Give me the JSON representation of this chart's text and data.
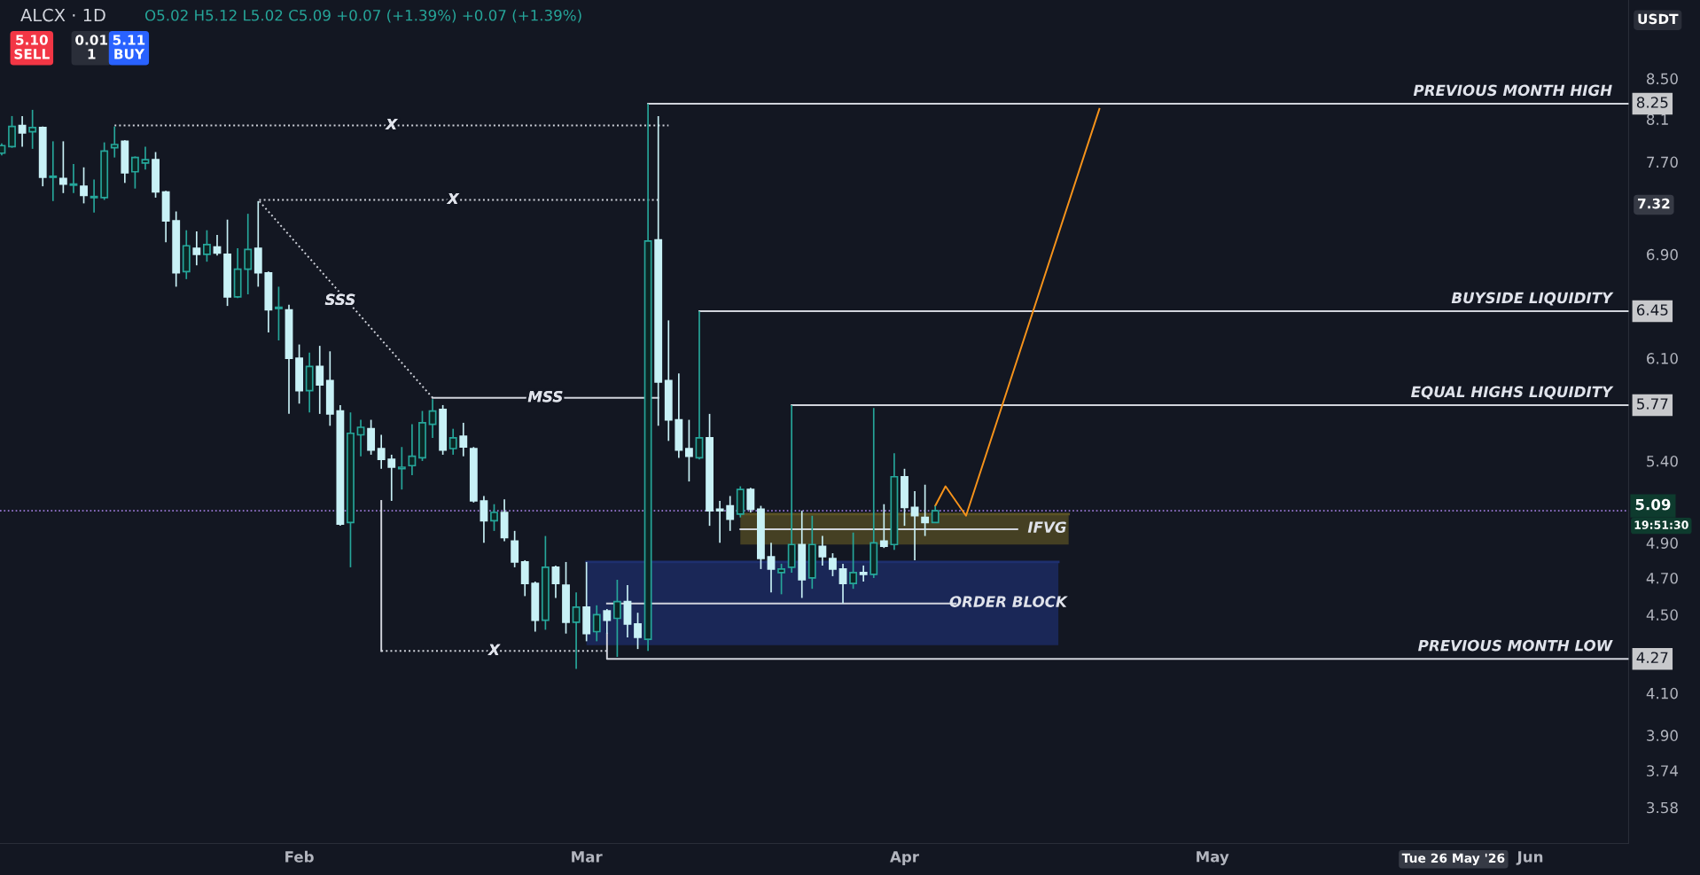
{
  "chart_data": {
    "type": "candlestick",
    "title": "ALCX · 1D",
    "subtitle": "O5.02 H5.12 L5.02 C5.09 +0.07 (+1.39%) +0.07 (+1.39%)",
    "x": [
      "2026-01-03",
      "2026-01-04",
      "2026-01-05",
      "2026-01-06",
      "2026-01-07",
      "2026-01-08",
      "2026-01-09",
      "2026-01-10",
      "2026-01-11",
      "2026-01-12",
      "2026-01-13",
      "2026-01-14",
      "2026-01-15",
      "2026-01-16",
      "2026-01-17",
      "2026-01-18",
      "2026-01-19",
      "2026-01-20",
      "2026-01-21",
      "2026-01-22",
      "2026-01-23",
      "2026-01-24",
      "2026-01-25",
      "2026-01-26",
      "2026-01-27",
      "2026-01-28",
      "2026-01-29",
      "2026-01-30",
      "2026-01-31",
      "2026-02-01",
      "2026-02-02",
      "2026-02-03",
      "2026-02-04",
      "2026-02-05",
      "2026-02-06",
      "2026-02-07",
      "2026-02-08",
      "2026-02-09",
      "2026-02-10",
      "2026-02-11",
      "2026-02-12",
      "2026-02-13",
      "2026-02-14",
      "2026-02-15",
      "2026-02-16",
      "2026-02-17",
      "2026-02-18",
      "2026-02-19",
      "2026-02-20",
      "2026-02-21",
      "2026-02-22",
      "2026-02-23",
      "2026-02-24",
      "2026-02-25",
      "2026-02-26",
      "2026-02-27",
      "2026-02-28",
      "2026-03-01",
      "2026-03-02",
      "2026-03-03",
      "2026-03-04",
      "2026-03-05",
      "2026-03-06",
      "2026-03-07",
      "2026-03-08",
      "2026-03-09",
      "2026-03-10",
      "2026-03-11",
      "2026-03-12",
      "2026-03-13",
      "2026-03-14",
      "2026-03-15",
      "2026-03-16",
      "2026-03-17",
      "2026-03-18",
      "2026-03-19",
      "2026-03-20",
      "2026-03-21",
      "2026-03-22",
      "2026-03-23",
      "2026-03-24",
      "2026-03-25",
      "2026-03-26",
      "2026-03-27",
      "2026-03-28",
      "2026-03-29",
      "2026-03-30",
      "2026-03-31",
      "2026-04-01",
      "2026-04-02",
      "2026-04-03",
      "2026-04-04"
    ],
    "ohlc": [
      [
        7.78,
        7.87,
        7.76,
        7.85
      ],
      [
        7.84,
        8.13,
        7.83,
        8.03
      ],
      [
        8.04,
        8.13,
        7.84,
        7.97
      ],
      [
        7.98,
        8.19,
        7.82,
        8.02
      ],
      [
        8.02,
        8.03,
        7.48,
        7.56
      ],
      [
        7.56,
        7.89,
        7.35,
        7.57
      ],
      [
        7.55,
        7.89,
        7.42,
        7.5
      ],
      [
        7.49,
        7.68,
        7.42,
        7.5
      ],
      [
        7.48,
        7.65,
        7.33,
        7.4
      ],
      [
        7.38,
        7.54,
        7.25,
        7.39
      ],
      [
        7.38,
        7.88,
        7.36,
        7.8
      ],
      [
        7.83,
        8.03,
        7.74,
        7.86
      ],
      [
        7.89,
        7.9,
        7.51,
        7.6
      ],
      [
        7.61,
        7.75,
        7.46,
        7.74
      ],
      [
        7.69,
        7.84,
        7.63,
        7.72
      ],
      [
        7.72,
        7.79,
        7.38,
        7.43
      ],
      [
        7.43,
        7.44,
        7.0,
        7.18
      ],
      [
        7.18,
        7.26,
        6.64,
        6.75
      ],
      [
        6.76,
        7.1,
        6.7,
        6.97
      ],
      [
        6.95,
        7.09,
        6.81,
        6.9
      ],
      [
        6.9,
        7.1,
        6.84,
        6.98
      ],
      [
        6.96,
        7.06,
        6.89,
        6.91
      ],
      [
        6.9,
        7.19,
        6.49,
        6.56
      ],
      [
        6.56,
        6.95,
        6.55,
        6.78
      ],
      [
        6.78,
        7.24,
        6.58,
        6.94
      ],
      [
        6.95,
        7.35,
        6.64,
        6.75
      ],
      [
        6.75,
        6.76,
        6.29,
        6.46
      ],
      [
        6.47,
        6.64,
        6.23,
        6.48
      ],
      [
        6.46,
        6.5,
        5.71,
        6.1
      ],
      [
        6.1,
        6.2,
        5.78,
        5.87
      ],
      [
        5.87,
        6.14,
        5.72,
        6.04
      ],
      [
        6.04,
        6.19,
        5.71,
        5.91
      ],
      [
        5.94,
        6.15,
        5.63,
        5.71
      ],
      [
        5.73,
        5.77,
        5.0,
        5.01
      ],
      [
        5.02,
        5.72,
        4.76,
        5.58
      ],
      [
        5.57,
        5.67,
        5.43,
        5.62
      ],
      [
        5.61,
        5.67,
        5.44,
        5.47
      ],
      [
        5.48,
        5.57,
        5.35,
        5.41
      ],
      [
        5.41,
        5.44,
        5.15,
        5.36
      ],
      [
        5.35,
        5.49,
        5.22,
        5.36
      ],
      [
        5.37,
        5.64,
        5.31,
        5.43
      ],
      [
        5.42,
        5.73,
        5.4,
        5.65
      ],
      [
        5.64,
        5.81,
        5.55,
        5.73
      ],
      [
        5.74,
        5.77,
        5.44,
        5.47
      ],
      [
        5.48,
        5.61,
        5.44,
        5.55
      ],
      [
        5.56,
        5.65,
        5.43,
        5.49
      ],
      [
        5.48,
        5.49,
        5.14,
        5.15
      ],
      [
        5.15,
        5.18,
        4.9,
        5.03
      ],
      [
        5.03,
        5.13,
        4.97,
        5.08
      ],
      [
        5.08,
        5.16,
        4.91,
        4.93
      ],
      [
        4.91,
        4.97,
        4.76,
        4.79
      ],
      [
        4.79,
        4.8,
        4.6,
        4.67
      ],
      [
        4.67,
        4.68,
        4.41,
        4.47
      ],
      [
        4.47,
        4.94,
        4.42,
        4.76
      ],
      [
        4.76,
        4.77,
        4.59,
        4.67
      ],
      [
        4.66,
        4.79,
        4.4,
        4.46
      ],
      [
        4.46,
        4.62,
        4.22,
        4.54
      ],
      [
        4.54,
        4.79,
        4.36,
        4.4
      ],
      [
        4.41,
        4.55,
        4.36,
        4.5
      ],
      [
        4.52,
        4.53,
        4.4,
        4.47
      ],
      [
        4.48,
        4.69,
        4.28,
        4.57
      ],
      [
        4.57,
        4.66,
        4.38,
        4.45
      ],
      [
        4.45,
        4.51,
        4.32,
        4.38
      ],
      [
        4.37,
        8.25,
        4.31,
        7.01
      ],
      [
        7.02,
        8.13,
        5.63,
        5.93
      ],
      [
        5.94,
        6.38,
        5.53,
        5.67
      ],
      [
        5.67,
        5.99,
        5.42,
        5.47
      ],
      [
        5.48,
        5.67,
        5.27,
        5.43
      ],
      [
        5.42,
        6.45,
        5.41,
        5.55
      ],
      [
        5.55,
        5.71,
        5.0,
        5.09
      ],
      [
        5.1,
        5.15,
        4.9,
        5.09
      ],
      [
        5.12,
        5.18,
        4.97,
        5.04
      ],
      [
        5.07,
        5.24,
        5.05,
        5.22
      ],
      [
        5.22,
        5.23,
        5.08,
        5.1
      ],
      [
        5.1,
        5.12,
        4.75,
        4.81
      ],
      [
        4.82,
        4.9,
        4.62,
        4.75
      ],
      [
        4.73,
        4.78,
        4.61,
        4.75
      ],
      [
        4.76,
        5.77,
        4.73,
        4.89
      ],
      [
        4.89,
        5.09,
        4.59,
        4.69
      ],
      [
        4.7,
        5.06,
        4.64,
        4.89
      ],
      [
        4.88,
        4.94,
        4.77,
        4.82
      ],
      [
        4.81,
        4.84,
        4.71,
        4.75
      ],
      [
        4.75,
        4.78,
        4.56,
        4.67
      ],
      [
        4.67,
        4.96,
        4.64,
        4.73
      ],
      [
        4.73,
        4.77,
        4.68,
        4.72
      ],
      [
        4.72,
        5.75,
        4.7,
        4.9
      ],
      [
        4.91,
        5.13,
        4.87,
        4.88
      ],
      [
        4.89,
        5.45,
        4.86,
        5.3
      ],
      [
        5.3,
        5.35,
        5.0,
        5.11
      ],
      [
        5.11,
        5.21,
        4.8,
        5.06
      ],
      [
        5.05,
        5.25,
        4.94,
        5.02
      ],
      [
        5.02,
        5.12,
        5.02,
        5.09
      ]
    ],
    "colors": [
      "#26a69a",
      "#26a69a",
      "#c8f1f6",
      "#26a69a",
      "#c8f1f6",
      "#26a69a",
      "#c8f1f6",
      "#26a69a",
      "#c8f1f6",
      "#26a69a",
      "#26a69a",
      "#26a69a",
      "#c8f1f6",
      "#26a69a",
      "#26a69a",
      "#c8f1f6",
      "#c8f1f6",
      "#c8f1f6",
      "#26a69a",
      "#c8f1f6",
      "#26a69a",
      "#c8f1f6",
      "#c8f1f6",
      "#26a69a",
      "#26a69a",
      "#c8f1f6",
      "#c8f1f6",
      "#26a69a",
      "#c8f1f6",
      "#c8f1f6",
      "#26a69a",
      "#c8f1f6",
      "#c8f1f6",
      "#c8f1f6",
      "#26a69a",
      "#26a69a",
      "#c8f1f6",
      "#c8f1f6",
      "#c8f1f6",
      "#26a69a",
      "#26a69a",
      "#26a69a",
      "#26a69a",
      "#c8f1f6",
      "#26a69a",
      "#c8f1f6",
      "#c8f1f6",
      "#c8f1f6",
      "#26a69a",
      "#c8f1f6",
      "#c8f1f6",
      "#c8f1f6",
      "#c8f1f6",
      "#26a69a",
      "#c8f1f6",
      "#c8f1f6",
      "#26a69a",
      "#c8f1f6",
      "#26a69a",
      "#c8f1f6",
      "#26a69a",
      "#c8f1f6",
      "#c8f1f6",
      "#26a69a",
      "#c8f1f6",
      "#c8f1f6",
      "#c8f1f6",
      "#c8f1f6",
      "#26a69a",
      "#c8f1f6",
      "#c8f1f6",
      "#c8f1f6",
      "#26a69a",
      "#c8f1f6",
      "#c8f1f6",
      "#c8f1f6",
      "#26a69a",
      "#26a69a",
      "#c8f1f6",
      "#26a69a",
      "#c8f1f6",
      "#c8f1f6",
      "#c8f1f6",
      "#26a69a",
      "#c8f1f6",
      "#26a69a",
      "#c8f1f6",
      "#26a69a",
      "#c8f1f6",
      "#c8f1f6",
      "#c8f1f6",
      "#26a69a"
    ],
    "series": [
      {
        "type": "line",
        "x": [
          "2026-01-14",
          "2026-03-09"
        ],
        "values": [
          8.04,
          8.04
        ],
        "color": "#d1d4dc",
        "line_style": "dotted"
      },
      {
        "type": "line",
        "x": [
          "2026-03-08",
          "2026-01-28",
          "2026-02-14"
        ],
        "values": [
          7.36,
          7.36,
          5.82
        ],
        "color": "#d1d4dc",
        "line_style": "dotted"
      },
      {
        "type": "line",
        "x": [
          "2026-02-14",
          "2026-03-08"
        ],
        "values": [
          5.82,
          5.82
        ],
        "color": "#d1d4dc",
        "line_style": "solid"
      },
      {
        "type": "line",
        "x": [
          "2026-02-09",
          "2026-02-09"
        ],
        "values": [
          5.15,
          4.31
        ],
        "color": "#d1d4dc",
        "line_style": "solid"
      },
      {
        "type": "line",
        "x": [
          "2026-02-09",
          "2026-03-03"
        ],
        "values": [
          4.31,
          4.31
        ],
        "color": "#d1d4dc",
        "line_style": "dotted"
      },
      {
        "type": "line",
        "x": [
          "2026-03-07",
          "2026-06-10T14:00"
        ],
        "values": [
          8.25,
          8.25
        ],
        "value_labels": [
          null,
          "8.25"
        ],
        "color": "#d1d4dc",
        "line_style": "solid"
      },
      {
        "type": "line",
        "x": [
          "2026-03-12",
          "2026-06-10T14:00"
        ],
        "values": [
          6.45,
          6.45
        ],
        "value_labels": [
          null,
          "6.45"
        ],
        "color": "#d1d4dc",
        "line_style": "solid"
      },
      {
        "type": "line",
        "x": [
          "2026-03-21",
          "2026-06-10T14:00"
        ],
        "values": [
          5.77,
          5.77
        ],
        "value_labels": [
          null,
          "5.77"
        ],
        "color": "#d1d4dc",
        "line_style": "solid"
      },
      {
        "type": "line",
        "x": [
          "2026-03-03",
          "2026-03-03",
          "2026-06-10T14:00"
        ],
        "values": [
          4.4,
          4.27,
          4.27
        ],
        "value_labels": [
          null,
          null,
          "4.27"
        ],
        "color": "#d1d4dc",
        "line_style": "solid"
      },
      {
        "type": "line",
        "x": [
          "2026-03-01",
          "2026-04-16"
        ],
        "values": [
          4.79,
          4.79
        ],
        "lower": [
          4.34,
          4.34
        ],
        "upper": [
          4.79,
          4.79
        ],
        "color": "#1e2f6e",
        "line_style": "solid"
      },
      {
        "type": "line",
        "x": [
          "2026-03-16",
          "2026-04-17"
        ],
        "values": [
          5.07,
          5.07
        ],
        "lower": [
          4.89,
          4.89
        ],
        "upper": [
          5.07,
          5.07
        ],
        "color": "#5b5324",
        "line_style": "solid"
      },
      {
        "type": "line",
        "x": [
          "2026-03-03",
          "2026-04-06"
        ],
        "values": [
          4.56,
          4.56
        ],
        "color": "#d1d4dc",
        "line_style": "solid"
      },
      {
        "type": "line",
        "x": [
          "2026-03-16",
          "2026-04-12"
        ],
        "values": [
          4.98,
          4.98
        ],
        "color": "#d1d4dc",
        "line_style": "solid"
      },
      {
        "type": "line",
        "x": [
          "2026-04-04",
          "2026-04-05",
          "2026-04-07",
          "2026-04-20"
        ],
        "values": [
          5.12,
          5.24,
          5.06,
          8.2
        ],
        "color": "#f7931a",
        "line_style": "solid"
      }
    ],
    "ref_lines": [
      {
        "axis": "y",
        "value": 5.09,
        "label": "5.09",
        "color": "#9c7ad8",
        "line_style": "dotted"
      }
    ],
    "annotations": [
      {
        "text": "X",
        "x": "2026-02-10",
        "y": 8.04
      },
      {
        "text": "X",
        "x": "2026-02-16",
        "y": 7.36
      },
      {
        "text": "X",
        "x": "2026-02-20",
        "y": 4.31
      },
      {
        "text": "SSS",
        "x": "2026-02-05",
        "y": 6.53
      },
      {
        "text": "MSS",
        "x": "2026-02-25",
        "y": 5.82
      },
      {
        "text": "PREVIOUS MONTH HIGH",
        "x": "2026-06-09",
        "y": 8.25
      },
      {
        "text": "BUYSIDE LIQUIDITY",
        "x": "2026-06-09",
        "y": 6.45
      },
      {
        "text": "EQUAL HIGHS LIQUIDITY",
        "x": "2026-06-09",
        "y": 5.77
      },
      {
        "text": "PREVIOUS MONTH LOW",
        "x": "2026-06-09",
        "y": 4.27
      },
      "IFVG",
      "ORDER BLOCK",
      "5.10\nSELL",
      "0.01\n1",
      "5.11\nBUY",
      "USDT",
      "7.32",
      "19:51:30",
      "Tue 26 May '26"
    ],
    "log": true,
    "ylim": [
      3.43,
      9.33
    ],
    "yticks": [
      3.58,
      3.74,
      {
        "value": 3.9,
        "label": "3.90"
      },
      {
        "value": 4.1,
        "label": "4.10"
      },
      {
        "value": 4.5,
        "label": "4.50"
      },
      {
        "value": 4.7,
        "label": "4.70"
      },
      {
        "value": 4.9,
        "label": "4.90"
      },
      {
        "value": 5.4,
        "label": "5.40"
      },
      {
        "value": 6.1,
        "label": "6.10"
      },
      {
        "value": 6.9,
        "label": "6.90"
      },
      {
        "value": 7.7,
        "label": "7.70"
      },
      8.1,
      {
        "value": 8.5,
        "label": "8.50"
      }
    ],
    "xlim": [
      "2026-01-02T20:00",
      "2026-06-10T14:00"
    ],
    "xticks": [
      {
        "value": "2026-02-01",
        "label": "Feb"
      },
      {
        "value": "2026-03-01",
        "label": "Mar"
      },
      {
        "value": "2026-04-01",
        "label": "Apr"
      },
      {
        "value": "2026-05-01",
        "label": "May"
      },
      {
        "value": "2026-06-01",
        "label": "Jun"
      }
    ],
    "marker": "none"
  }
}
